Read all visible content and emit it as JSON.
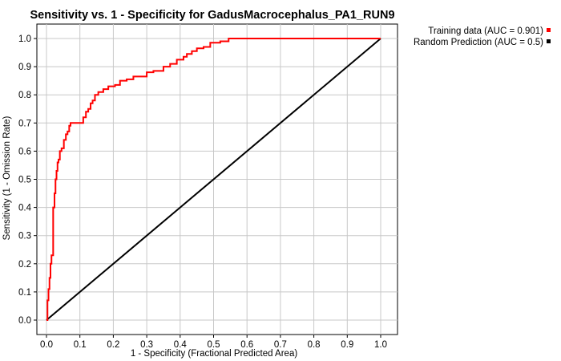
{
  "chart_data": {
    "type": "line",
    "title": "Sensitivity vs. 1 - Specificity for GadusMacrocephalus_PA1_RUN9",
    "xlabel": "1 - Specificity  (Fractional Predicted Area)",
    "ylabel": "Sensitivity  (1 - Omission Rate)",
    "xlim": [
      0.0,
      1.0
    ],
    "ylim": [
      0.0,
      1.0
    ],
    "xticks": [
      "0.0",
      "0.1",
      "0.2",
      "0.3",
      "0.4",
      "0.5",
      "0.6",
      "0.7",
      "0.8",
      "0.9",
      "1.0"
    ],
    "yticks": [
      "0.0",
      "0.1",
      "0.2",
      "0.3",
      "0.4",
      "0.5",
      "0.6",
      "0.7",
      "0.8",
      "0.9",
      "1.0"
    ],
    "grid": true,
    "legend_position": "top-right, outside plot",
    "series": [
      {
        "name": "Training data (AUC = 0.901)",
        "color": "#ff0000",
        "x": [
          0.0,
          0.003,
          0.003,
          0.006,
          0.006,
          0.009,
          0.009,
          0.012,
          0.012,
          0.015,
          0.015,
          0.02,
          0.02,
          0.024,
          0.024,
          0.027,
          0.027,
          0.03,
          0.03,
          0.033,
          0.033,
          0.036,
          0.036,
          0.04,
          0.04,
          0.045,
          0.045,
          0.052,
          0.052,
          0.058,
          0.058,
          0.063,
          0.063,
          0.068,
          0.068,
          0.072,
          0.072,
          0.078,
          0.078,
          0.085,
          0.085,
          0.11,
          0.11,
          0.118,
          0.118,
          0.125,
          0.125,
          0.132,
          0.132,
          0.138,
          0.138,
          0.145,
          0.145,
          0.155,
          0.155,
          0.17,
          0.17,
          0.185,
          0.185,
          0.205,
          0.205,
          0.22,
          0.22,
          0.24,
          0.24,
          0.26,
          0.26,
          0.28,
          0.28,
          0.3,
          0.3,
          0.32,
          0.32,
          0.35,
          0.35,
          0.37,
          0.37,
          0.39,
          0.39,
          0.41,
          0.41,
          0.42,
          0.42,
          0.435,
          0.435,
          0.45,
          0.45,
          0.47,
          0.47,
          0.49,
          0.49,
          0.52,
          0.52,
          0.545,
          0.545,
          0.6,
          0.7,
          0.8,
          0.9,
          1.0
        ],
        "y": [
          0.0,
          0.0,
          0.07,
          0.07,
          0.11,
          0.11,
          0.15,
          0.15,
          0.2,
          0.2,
          0.23,
          0.23,
          0.4,
          0.4,
          0.45,
          0.45,
          0.5,
          0.5,
          0.53,
          0.53,
          0.56,
          0.56,
          0.57,
          0.57,
          0.6,
          0.6,
          0.61,
          0.61,
          0.64,
          0.64,
          0.66,
          0.66,
          0.67,
          0.67,
          0.69,
          0.69,
          0.7,
          0.7,
          0.7,
          0.7,
          0.7,
          0.7,
          0.72,
          0.72,
          0.74,
          0.74,
          0.75,
          0.75,
          0.77,
          0.77,
          0.78,
          0.78,
          0.8,
          0.8,
          0.81,
          0.81,
          0.82,
          0.82,
          0.83,
          0.83,
          0.835,
          0.835,
          0.85,
          0.85,
          0.855,
          0.855,
          0.865,
          0.865,
          0.865,
          0.865,
          0.88,
          0.88,
          0.885,
          0.885,
          0.9,
          0.9,
          0.91,
          0.91,
          0.925,
          0.925,
          0.935,
          0.935,
          0.945,
          0.945,
          0.955,
          0.955,
          0.965,
          0.965,
          0.97,
          0.97,
          0.985,
          0.985,
          0.99,
          0.99,
          1.0,
          1.0,
          1.0,
          1.0,
          1.0,
          1.0
        ]
      },
      {
        "name": "Random Prediction (AUC = 0.5)",
        "color": "#000000",
        "x": [
          0.0,
          1.0
        ],
        "y": [
          0.0,
          1.0
        ]
      }
    ]
  }
}
